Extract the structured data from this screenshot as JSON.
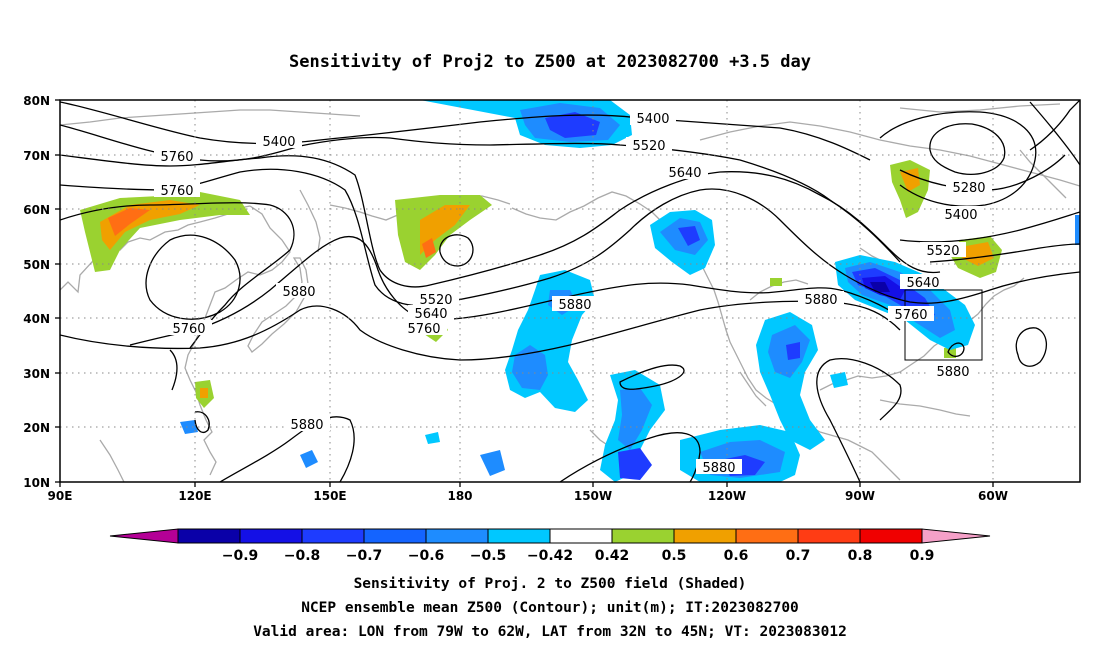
{
  "title": "Sensitivity of Proj2 to Z500 at 2023082700 +3.5 day",
  "lat_ticks": [
    "80N",
    "70N",
    "60N",
    "50N",
    "40N",
    "30N",
    "20N",
    "10N"
  ],
  "lon_ticks": [
    "90E",
    "120E",
    "150E",
    "180",
    "150W",
    "120W",
    "90W",
    "60W"
  ],
  "contour_labels": [
    "5400",
    "5400",
    "5520",
    "5640",
    "5760",
    "5280",
    "5400",
    "5520",
    "5640",
    "5760",
    "5880",
    "5760",
    "5520",
    "5640",
    "5760",
    "5880",
    "5880",
    "5760",
    "5880",
    "5880",
    "5880"
  ],
  "colorbar": {
    "labels": [
      "-0.9",
      "-0.8",
      "-0.7",
      "-0.6",
      "-0.5",
      "-0.42",
      "0.42",
      "0.5",
      "0.6",
      "0.7",
      "0.8",
      "0.9"
    ],
    "colors": [
      "#0a00a8",
      "#1410e6",
      "#1e3cff",
      "#1464ff",
      "#1e8cff",
      "#00c8ff",
      "#ffffff",
      "#9ad230",
      "#f0a000",
      "#ff6e14",
      "#ff3c14",
      "#f00000"
    ],
    "under_color": "#b40096",
    "over_color": "#f5a0c8"
  },
  "caption_lines": [
    "Sensitivity of Proj. 2 to Z500 field (Shaded)",
    "NCEP ensemble mean Z500 (Contour); unit(m); IT:2023082700",
    "Valid area: LON from 79W to 62W, LAT from 32N to 45N; VT: 2023083012"
  ],
  "colors": {
    "coast": "#aaaaaa",
    "contour": "#000000",
    "grid": "#888888"
  }
}
